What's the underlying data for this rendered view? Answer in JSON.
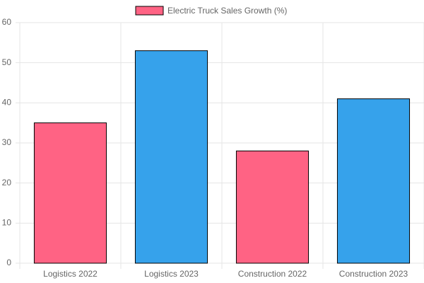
{
  "chart_data": {
    "type": "bar",
    "categories": [
      "Logistics 2022",
      "Logistics 2023",
      "Construction 2022",
      "Construction 2023"
    ],
    "series": [
      {
        "name": "Electric Truck Sales Growth (%)",
        "colors": [
          "#ff6384",
          "#36a2eb",
          "#ff6384",
          "#36a2eb"
        ],
        "values": [
          35,
          53,
          28,
          41
        ]
      }
    ],
    "ylim": [
      0,
      60
    ],
    "yticks": [
      0,
      10,
      20,
      30,
      40,
      50,
      60
    ],
    "grid": true,
    "legend": "top"
  }
}
